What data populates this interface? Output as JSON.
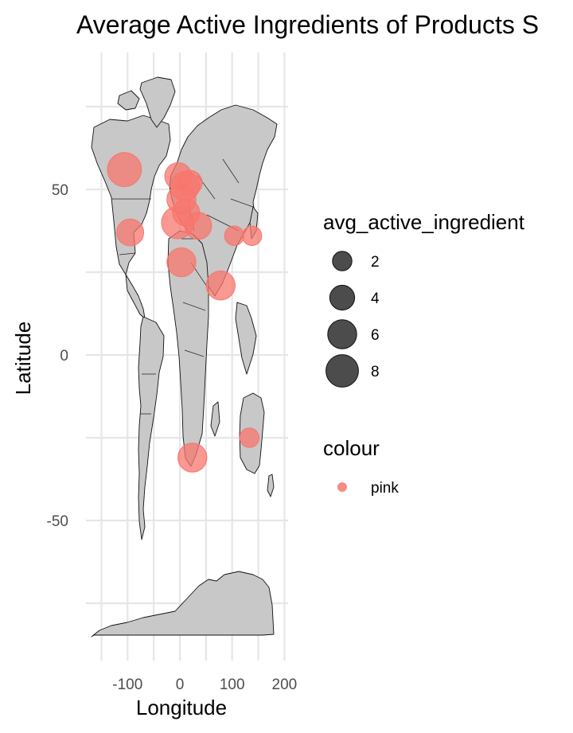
{
  "chart_data": {
    "type": "scatter",
    "title": "Average Active Ingredients of Products S",
    "xlabel": "Longitude",
    "ylabel": "Latitude",
    "xlim": [
      -180,
      200
    ],
    "ylim": [
      -86,
      85
    ],
    "xticks": [
      -100,
      0,
      100,
      200
    ],
    "yticks": [
      -50,
      0,
      50
    ],
    "xtick_labels": [
      "-100",
      "0",
      "100",
      "200"
    ],
    "ytick_labels": [
      "-50",
      "0",
      "50"
    ],
    "grid": true,
    "background": "world map (countries, grey fill)",
    "point_color": "#f8766d",
    "legend_position": "right",
    "size_legend": {
      "title": "avg_active_ingredient",
      "entries": [
        {
          "label": "2",
          "value": 2
        },
        {
          "label": "4",
          "value": 4
        },
        {
          "label": "6",
          "value": 6
        },
        {
          "label": "8",
          "value": 8
        }
      ]
    },
    "color_legend": {
      "title": "colour",
      "entries": [
        {
          "label": "pink",
          "color": "#f8766d"
        }
      ]
    },
    "points": [
      {
        "x": -106,
        "y": 56,
        "size": 9
      },
      {
        "x": -95,
        "y": 37,
        "size": 5
      },
      {
        "x": -3,
        "y": 54,
        "size": 5
      },
      {
        "x": 10,
        "y": 51,
        "size": 6
      },
      {
        "x": 3,
        "y": 47,
        "size": 6
      },
      {
        "x": 12,
        "y": 43,
        "size": 5
      },
      {
        "x": 19,
        "y": 52,
        "size": 4
      },
      {
        "x": -4,
        "y": 40,
        "size": 8
      },
      {
        "x": 35,
        "y": 39,
        "size": 5
      },
      {
        "x": 3,
        "y": 28,
        "size": 6
      },
      {
        "x": 78,
        "y": 21,
        "size": 6
      },
      {
        "x": 104,
        "y": 36,
        "size": 2
      },
      {
        "x": 138,
        "y": 36,
        "size": 2
      },
      {
        "x": 133,
        "y": -25,
        "size": 2
      },
      {
        "x": 24,
        "y": -31,
        "size": 6
      }
    ]
  }
}
